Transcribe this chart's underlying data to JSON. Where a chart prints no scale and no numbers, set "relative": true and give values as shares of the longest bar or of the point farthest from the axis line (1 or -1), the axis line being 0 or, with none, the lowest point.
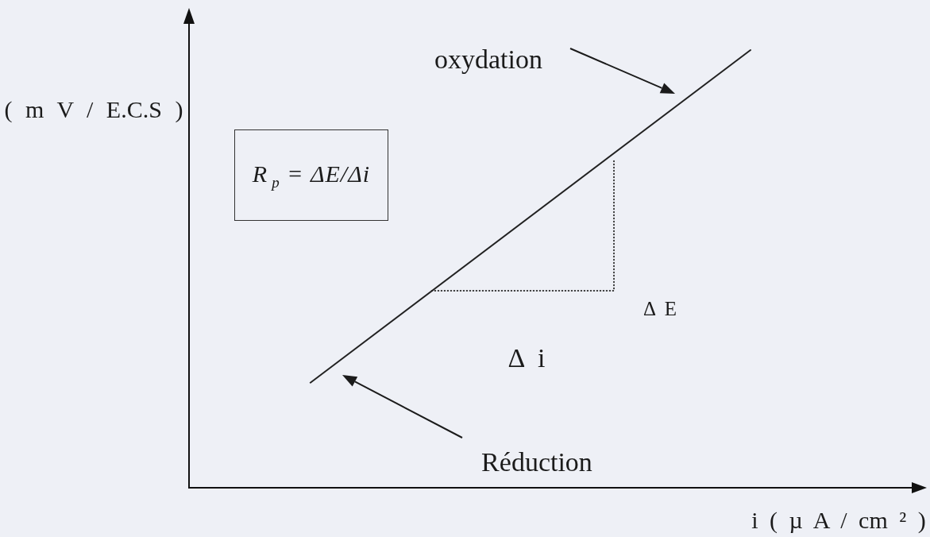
{
  "chart_data": {
    "type": "line",
    "relative": true,
    "xlabel": "i ( µ A / cm ² )",
    "ylabel": "( m V / E.C.S )",
    "categories": [
      null,
      null,
      null,
      null,
      null,
      null,
      null,
      null,
      null,
      null,
      null,
      null,
      null,
      null,
      null,
      null,
      null,
      null,
      null,
      null,
      null,
      null,
      null,
      null,
      null,
      null,
      null,
      null,
      null,
      null,
      null,
      null,
      null,
      null,
      null,
      null,
      null,
      null
    ],
    "series": [
      {
        "color": "#222222",
        "values": [
          null,
          null,
          null,
          null,
          null,
          null,
          null,
          null,
          0.24,
          null,
          null,
          null,
          null,
          null,
          null,
          null,
          null,
          null,
          null,
          null,
          null,
          null,
          null,
          null,
          null,
          null,
          null,
          null,
          null,
          null,
          null,
          null,
          null,
          null,
          null,
          null,
          null,
          1
        ]
      },
      {
        "type": "step",
        "color": "#333333",
        "line_style": "dotted",
        "values": [
          null,
          null,
          null,
          null,
          null,
          null,
          null,
          null,
          null,
          null,
          null,
          null,
          null,
          null,
          null,
          null,
          0.45,
          null,
          null,
          null,
          null,
          null,
          null,
          null,
          null,
          null,
          null,
          null,
          0.75,
          null,
          null,
          null,
          null,
          null,
          null,
          null,
          null,
          null
        ]
      }
    ],
    "marker": "none",
    "line_style": "solid",
    "annotations": [
      "R$_{p}$ = ΔE/Δi",
      "oxydation",
      "Δ E",
      "Δ i",
      "Réduction"
    ]
  }
}
